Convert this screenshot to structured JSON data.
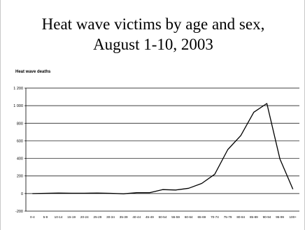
{
  "slide": {
    "title_line1": "Heat wave victims by age and sex,",
    "title_line2": "August 1-10, 2003"
  },
  "chart_data": {
    "type": "line",
    "title": "",
    "ylabel": "Heat wave deaths",
    "xlabel": "",
    "ylim": [
      -200,
      1200
    ],
    "yticks": [
      -200,
      0,
      200,
      400,
      600,
      800,
      1000,
      1200
    ],
    "ytick_labels": [
      "-200",
      "0",
      "200",
      "400",
      "600",
      "800",
      "1 000",
      "1 200"
    ],
    "grid": true,
    "categories": [
      "0-4",
      "5-9",
      "10-14",
      "15-19",
      "20-24",
      "25-29",
      "30-34",
      "35-39",
      "40-44",
      "45-49",
      "50-54",
      "55-59",
      "60-64",
      "65-69",
      "70-74",
      "75-79",
      "80-84",
      "85-89",
      "90-94",
      "95-99",
      "100+"
    ],
    "series": [
      {
        "values": [
          0,
          3,
          5,
          4,
          4,
          5,
          3,
          -3,
          10,
          10,
          45,
          40,
          60,
          115,
          220,
          500,
          660,
          925,
          1025,
          395,
          50
        ],
        "color": "#000000"
      }
    ]
  }
}
